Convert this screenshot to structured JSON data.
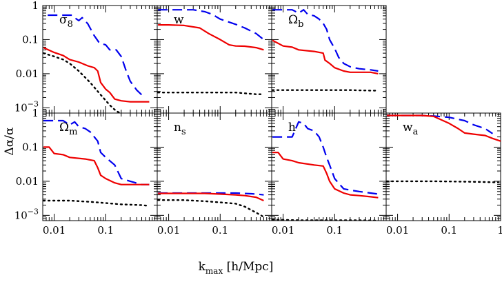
{
  "chart_data": {
    "type": "line",
    "xscale": "log",
    "yscale": "log",
    "xlim": [
      0.006,
      1
    ],
    "ylim": [
      0.0007,
      1
    ],
    "xlabel": "k",
    "xlabel_sub": "max",
    "xlabel_units": " [h/Mpc]",
    "ylabel": "Δα/α",
    "x_tick_labels": [
      {
        "value": 0.01,
        "label": "0.01"
      },
      {
        "value": 0.1,
        "label": "0.1"
      },
      {
        "value": 1,
        "label": "1"
      }
    ],
    "y_tick_labels": [
      {
        "value": 1,
        "label": "1"
      },
      {
        "value": 0.1,
        "label": "0.1"
      },
      {
        "value": 0.01,
        "label": "0.01"
      },
      {
        "value": 0.001,
        "base": "10",
        "exp": "−3"
      }
    ],
    "series_styles": {
      "blue_dashed": {
        "color": "#0000ee",
        "dash": "14,7",
        "width": 2.2
      },
      "red_solid": {
        "color": "#ee0000",
        "dash": "",
        "width": 2.2
      },
      "black_dotted": {
        "color": "#000000",
        "dash": "2,5",
        "width": 2.4
      }
    },
    "panels": [
      {
        "name": "sigma8",
        "row": 0,
        "col": 0,
        "label": {
          "base": "σ",
          "sub": "8"
        },
        "series": [
          {
            "style": "blue_dashed",
            "x": [
              0.0075,
              0.02,
              0.022,
              0.026,
              0.03,
              0.035,
              0.045,
              0.06,
              0.075,
              0.1,
              0.12,
              0.16,
              0.2,
              0.25,
              0.3,
              0.4,
              0.5,
              0.6
            ],
            "y": [
              0.52,
              0.52,
              0.52,
              0.42,
              0.36,
              0.44,
              0.29,
              0.13,
              0.08,
              0.07,
              0.05,
              0.05,
              0.032,
              0.012,
              0.006,
              0.0033,
              0.0024,
              0.0021
            ]
          },
          {
            "style": "red_solid",
            "x": [
              0.0062,
              0.01,
              0.015,
              0.02,
              0.03,
              0.045,
              0.06,
              0.07,
              0.08,
              0.1,
              0.12,
              0.15,
              0.2,
              0.3,
              0.5,
              0.7
            ],
            "y": [
              0.058,
              0.042,
              0.034,
              0.026,
              0.022,
              0.017,
              0.015,
              0.012,
              0.0055,
              0.0035,
              0.0028,
              0.0018,
              0.0016,
              0.0015,
              0.0015,
              0.0015
            ]
          },
          {
            "style": "black_dotted",
            "x": [
              0.0062,
              0.01,
              0.015,
              0.02,
              0.03,
              0.05,
              0.08,
              0.12,
              0.16,
              0.2
            ],
            "y": [
              0.04,
              0.032,
              0.026,
              0.02,
              0.012,
              0.0055,
              0.0024,
              0.0012,
              0.0008,
              0.00068
            ]
          }
        ]
      },
      {
        "name": "w",
        "row": 0,
        "col": 1,
        "label": {
          "base": "w",
          "sub": ""
        },
        "series": [
          {
            "style": "blue_dashed",
            "x": [
              0.0062,
              0.01,
              0.015,
              0.02,
              0.03,
              0.05,
              0.07,
              0.1,
              0.2,
              0.3,
              0.5,
              0.7
            ],
            "y": [
              0.75,
              0.75,
              0.75,
              0.75,
              0.75,
              0.66,
              0.55,
              0.4,
              0.28,
              0.22,
              0.15,
              0.1
            ]
          },
          {
            "style": "red_solid",
            "x": [
              0.0062,
              0.01,
              0.02,
              0.04,
              0.06,
              0.1,
              0.15,
              0.2,
              0.3,
              0.5,
              0.7
            ],
            "y": [
              0.27,
              0.27,
              0.26,
              0.22,
              0.15,
              0.1,
              0.07,
              0.065,
              0.064,
              0.058,
              0.05
            ]
          },
          {
            "style": "black_dotted",
            "x": [
              0.0062,
              0.05,
              0.2,
              0.5,
              0.7
            ],
            "y": [
              0.0028,
              0.0028,
              0.0028,
              0.0025,
              0.0025
            ]
          }
        ]
      },
      {
        "name": "omega_b",
        "row": 0,
        "col": 2,
        "label": {
          "base": "Ω",
          "sub": "b"
        },
        "series": [
          {
            "style": "blue_dashed",
            "x": [
              0.0062,
              0.012,
              0.015,
              0.02,
              0.025,
              0.03,
              0.04,
              0.05,
              0.06,
              0.07,
              0.08,
              0.1,
              0.12,
              0.15,
              0.2,
              0.3,
              0.5,
              0.7
            ],
            "y": [
              0.75,
              0.75,
              0.75,
              0.6,
              0.75,
              0.55,
              0.5,
              0.4,
              0.3,
              0.2,
              0.1,
              0.055,
              0.03,
              0.02,
              0.016,
              0.014,
              0.013,
              0.012
            ]
          },
          {
            "style": "red_solid",
            "x": [
              0.0062,
              0.01,
              0.015,
              0.02,
              0.04,
              0.06,
              0.065,
              0.08,
              0.1,
              0.15,
              0.2,
              0.3,
              0.5,
              0.7
            ],
            "y": [
              0.095,
              0.065,
              0.06,
              0.05,
              0.045,
              0.04,
              0.025,
              0.02,
              0.015,
              0.012,
              0.011,
              0.011,
              0.011,
              0.01
            ]
          },
          {
            "style": "black_dotted",
            "x": [
              0.0062,
              0.05,
              0.2,
              0.5,
              0.7
            ],
            "y": [
              0.0033,
              0.0033,
              0.0033,
              0.0032,
              0.0032
            ]
          }
        ]
      },
      {
        "name": "omega_m",
        "row": 1,
        "col": 0,
        "label": {
          "base": "Ω",
          "sub": "m"
        },
        "series": [
          {
            "style": "blue_dashed",
            "x": [
              0.0062,
              0.012,
              0.015,
              0.02,
              0.025,
              0.03,
              0.04,
              0.05,
              0.06,
              0.07,
              0.08,
              0.1,
              0.15,
              0.2,
              0.3,
              0.5,
              0.7
            ],
            "y": [
              0.6,
              0.6,
              0.6,
              0.45,
              0.55,
              0.4,
              0.35,
              0.28,
              0.2,
              0.15,
              0.07,
              0.05,
              0.03,
              0.012,
              0.01,
              0.008,
              0.008
            ]
          },
          {
            "style": "red_solid",
            "x": [
              0.0062,
              0.008,
              0.01,
              0.015,
              0.02,
              0.04,
              0.06,
              0.07,
              0.08,
              0.1,
              0.15,
              0.2,
              0.3,
              0.5,
              0.7
            ],
            "y": [
              0.1,
              0.1,
              0.065,
              0.06,
              0.05,
              0.045,
              0.04,
              0.025,
              0.015,
              0.012,
              0.009,
              0.008,
              0.008,
              0.008,
              0.008
            ]
          },
          {
            "style": "black_dotted",
            "x": [
              0.0062,
              0.02,
              0.05,
              0.1,
              0.2,
              0.5,
              0.7
            ],
            "y": [
              0.0027,
              0.0027,
              0.0025,
              0.0023,
              0.0021,
              0.002,
              0.0019
            ]
          }
        ]
      },
      {
        "name": "n_s",
        "row": 1,
        "col": 1,
        "label": {
          "base": "n",
          "sub": "s"
        },
        "series": [
          {
            "style": "blue_dashed",
            "x": [
              0.0062,
              0.01,
              0.05,
              0.1,
              0.2,
              0.4,
              0.5,
              0.7
            ],
            "y": [
              0.0045,
              0.0045,
              0.0045,
              0.0045,
              0.0045,
              0.0043,
              0.0042,
              0.004
            ]
          },
          {
            "style": "red_solid",
            "x": [
              0.0062,
              0.01,
              0.05,
              0.1,
              0.2,
              0.3,
              0.5,
              0.7
            ],
            "y": [
              0.0044,
              0.0044,
              0.0044,
              0.0042,
              0.004,
              0.0038,
              0.0034,
              0.0027
            ]
          },
          {
            "style": "black_dotted",
            "x": [
              0.0062,
              0.02,
              0.05,
              0.1,
              0.2,
              0.3,
              0.5,
              0.7
            ],
            "y": [
              0.0028,
              0.0028,
              0.0026,
              0.0024,
              0.0022,
              0.0018,
              0.0012,
              0.0009
            ]
          }
        ]
      },
      {
        "name": "h",
        "row": 1,
        "col": 2,
        "label": {
          "base": "h",
          "sub": ""
        },
        "series": [
          {
            "style": "blue_dashed",
            "x": [
              0.0062,
              0.01,
              0.015,
              0.02,
              0.025,
              0.03,
              0.04,
              0.05,
              0.06,
              0.07,
              0.08,
              0.1,
              0.15,
              0.2,
              0.3,
              0.5,
              0.7
            ],
            "y": [
              0.2,
              0.2,
              0.2,
              0.55,
              0.5,
              0.35,
              0.3,
              0.2,
              0.1,
              0.05,
              0.03,
              0.012,
              0.006,
              0.0055,
              0.005,
              0.0045,
              0.0042
            ]
          },
          {
            "style": "red_solid",
            "x": [
              0.0062,
              0.008,
              0.01,
              0.015,
              0.02,
              0.04,
              0.06,
              0.07,
              0.08,
              0.1,
              0.15,
              0.2,
              0.3,
              0.5,
              0.7
            ],
            "y": [
              0.07,
              0.07,
              0.045,
              0.04,
              0.035,
              0.03,
              0.028,
              0.017,
              0.01,
              0.006,
              0.0045,
              0.004,
              0.0038,
              0.0035,
              0.0033
            ]
          },
          {
            "style": "black_dotted",
            "x": [
              0.0062,
              0.02,
              0.1,
              0.3,
              0.7
            ],
            "y": [
              0.00075,
              0.00072,
              0.00072,
              0.00072,
              0.0007
            ]
          }
        ]
      },
      {
        "name": "w_a",
        "row": 1,
        "col": 3,
        "label": {
          "base": "w",
          "sub": "a"
        },
        "series": [
          {
            "style": "blue_dashed",
            "x": [
              0.0062,
              0.01,
              0.03,
              0.05,
              0.1,
              0.2,
              0.3,
              0.5,
              0.7
            ],
            "y": [
              0.85,
              0.85,
              0.85,
              0.82,
              0.75,
              0.6,
              0.45,
              0.35,
              0.25
            ]
          },
          {
            "style": "red_solid",
            "x": [
              0.0062,
              0.01,
              0.03,
              0.05,
              0.1,
              0.15,
              0.2,
              0.3,
              0.5,
              0.7,
              1
            ],
            "y": [
              0.85,
              0.85,
              0.85,
              0.8,
              0.5,
              0.35,
              0.26,
              0.24,
              0.22,
              0.18,
              0.15
            ]
          },
          {
            "style": "black_dotted",
            "x": [
              0.0062,
              0.05,
              0.2,
              0.5,
              0.9
            ],
            "y": [
              0.01,
              0.01,
              0.0097,
              0.0095,
              0.0093
            ]
          }
        ]
      }
    ]
  }
}
